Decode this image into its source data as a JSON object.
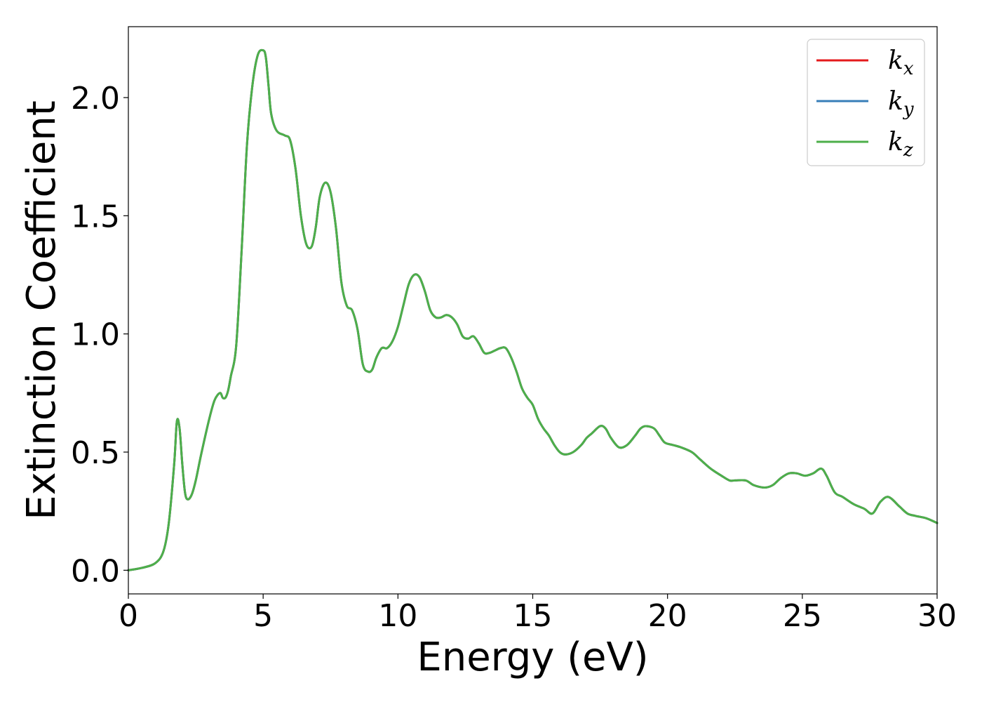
{
  "chart_data": {
    "type": "line",
    "title": "",
    "xlabel": "Energy (eV)",
    "ylabel": "Extinction Coefficient",
    "xlim": [
      0,
      30
    ],
    "ylim": [
      -0.1,
      2.3
    ],
    "x_ticks": [
      0,
      5,
      10,
      15,
      20,
      25,
      30
    ],
    "x_tick_labels": [
      "0",
      "5",
      "10",
      "15",
      "20",
      "25",
      "30"
    ],
    "y_ticks": [
      0.0,
      0.5,
      1.0,
      1.5,
      2.0
    ],
    "y_tick_labels": [
      "0.0",
      "0.5",
      "1.0",
      "1.5",
      "2.0"
    ],
    "grid": false,
    "legend_position": "top-right",
    "x": [
      0,
      0.5,
      1.0,
      1.3,
      1.5,
      1.7,
      1.8,
      1.9,
      2.0,
      2.1,
      2.2,
      2.35,
      2.5,
      2.7,
      3.0,
      3.2,
      3.4,
      3.5,
      3.6,
      3.7,
      3.8,
      4.0,
      4.2,
      4.4,
      4.6,
      4.8,
      5.0,
      5.1,
      5.2,
      5.3,
      5.5,
      5.8,
      6.0,
      6.2,
      6.4,
      6.6,
      6.8,
      6.95,
      7.1,
      7.3,
      7.5,
      7.7,
      7.9,
      8.1,
      8.3,
      8.5,
      8.7,
      8.9,
      9.05,
      9.2,
      9.4,
      9.6,
      9.8,
      10.0,
      10.2,
      10.4,
      10.6,
      10.8,
      11.0,
      11.2,
      11.4,
      11.6,
      11.8,
      12.0,
      12.2,
      12.4,
      12.6,
      12.8,
      13.0,
      13.2,
      13.4,
      13.6,
      13.8,
      14.0,
      14.2,
      14.4,
      14.6,
      14.8,
      15.0,
      15.2,
      15.4,
      15.6,
      15.8,
      16.0,
      16.2,
      16.5,
      16.8,
      17.0,
      17.2,
      17.5,
      17.7,
      17.9,
      18.2,
      18.5,
      18.8,
      19.0,
      19.2,
      19.5,
      19.7,
      19.9,
      20.2,
      20.5,
      20.9,
      21.2,
      21.6,
      22.0,
      22.3,
      22.5,
      22.9,
      23.2,
      23.6,
      23.9,
      24.2,
      24.5,
      24.8,
      25.1,
      25.4,
      25.7,
      25.9,
      26.2,
      26.5,
      26.9,
      27.3,
      27.6,
      27.9,
      28.2,
      28.6,
      28.9,
      29.2,
      29.6,
      30.0
    ],
    "series": [
      {
        "name": "k_x",
        "color": "#e41a1c",
        "values": [
          0.0,
          0.01,
          0.03,
          0.08,
          0.2,
          0.45,
          0.63,
          0.6,
          0.45,
          0.33,
          0.3,
          0.32,
          0.38,
          0.49,
          0.64,
          0.72,
          0.75,
          0.73,
          0.73,
          0.76,
          0.82,
          0.95,
          1.35,
          1.8,
          2.05,
          2.18,
          2.2,
          2.17,
          2.05,
          1.93,
          1.86,
          1.84,
          1.82,
          1.7,
          1.5,
          1.38,
          1.37,
          1.45,
          1.58,
          1.64,
          1.6,
          1.45,
          1.22,
          1.12,
          1.1,
          1.02,
          0.87,
          0.84,
          0.85,
          0.9,
          0.94,
          0.94,
          0.97,
          1.03,
          1.12,
          1.21,
          1.25,
          1.24,
          1.18,
          1.1,
          1.07,
          1.07,
          1.08,
          1.07,
          1.04,
          0.99,
          0.98,
          0.99,
          0.96,
          0.92,
          0.92,
          0.93,
          0.94,
          0.94,
          0.9,
          0.84,
          0.77,
          0.73,
          0.7,
          0.64,
          0.6,
          0.57,
          0.53,
          0.5,
          0.49,
          0.5,
          0.53,
          0.56,
          0.58,
          0.61,
          0.6,
          0.56,
          0.52,
          0.53,
          0.57,
          0.6,
          0.61,
          0.6,
          0.57,
          0.54,
          0.53,
          0.52,
          0.5,
          0.47,
          0.43,
          0.4,
          0.38,
          0.38,
          0.38,
          0.36,
          0.35,
          0.36,
          0.39,
          0.41,
          0.41,
          0.4,
          0.41,
          0.43,
          0.4,
          0.33,
          0.31,
          0.28,
          0.26,
          0.24,
          0.29,
          0.31,
          0.27,
          0.24,
          0.23,
          0.22,
          0.2
        ]
      },
      {
        "name": "k_y",
        "color": "#377eb8",
        "values": [
          0.0,
          0.01,
          0.03,
          0.08,
          0.2,
          0.45,
          0.63,
          0.6,
          0.45,
          0.33,
          0.3,
          0.32,
          0.38,
          0.49,
          0.64,
          0.72,
          0.75,
          0.73,
          0.73,
          0.76,
          0.82,
          0.95,
          1.35,
          1.8,
          2.05,
          2.18,
          2.2,
          2.17,
          2.05,
          1.93,
          1.86,
          1.84,
          1.82,
          1.7,
          1.5,
          1.38,
          1.37,
          1.45,
          1.58,
          1.64,
          1.6,
          1.45,
          1.22,
          1.12,
          1.1,
          1.02,
          0.87,
          0.84,
          0.85,
          0.9,
          0.94,
          0.94,
          0.97,
          1.03,
          1.12,
          1.21,
          1.25,
          1.24,
          1.18,
          1.1,
          1.07,
          1.07,
          1.08,
          1.07,
          1.04,
          0.99,
          0.98,
          0.99,
          0.96,
          0.92,
          0.92,
          0.93,
          0.94,
          0.94,
          0.9,
          0.84,
          0.77,
          0.73,
          0.7,
          0.64,
          0.6,
          0.57,
          0.53,
          0.5,
          0.49,
          0.5,
          0.53,
          0.56,
          0.58,
          0.61,
          0.6,
          0.56,
          0.52,
          0.53,
          0.57,
          0.6,
          0.61,
          0.6,
          0.57,
          0.54,
          0.53,
          0.52,
          0.5,
          0.47,
          0.43,
          0.4,
          0.38,
          0.38,
          0.38,
          0.36,
          0.35,
          0.36,
          0.39,
          0.41,
          0.41,
          0.4,
          0.41,
          0.43,
          0.4,
          0.33,
          0.31,
          0.28,
          0.26,
          0.24,
          0.29,
          0.31,
          0.27,
          0.24,
          0.23,
          0.22,
          0.2
        ]
      },
      {
        "name": "k_z",
        "color": "#4daf4a",
        "values": [
          0.0,
          0.01,
          0.03,
          0.08,
          0.2,
          0.45,
          0.63,
          0.6,
          0.45,
          0.33,
          0.3,
          0.32,
          0.38,
          0.49,
          0.64,
          0.72,
          0.75,
          0.73,
          0.73,
          0.76,
          0.82,
          0.95,
          1.35,
          1.8,
          2.05,
          2.18,
          2.2,
          2.17,
          2.05,
          1.93,
          1.86,
          1.84,
          1.82,
          1.7,
          1.5,
          1.38,
          1.37,
          1.45,
          1.58,
          1.64,
          1.6,
          1.45,
          1.22,
          1.12,
          1.1,
          1.02,
          0.87,
          0.84,
          0.85,
          0.9,
          0.94,
          0.94,
          0.97,
          1.03,
          1.12,
          1.21,
          1.25,
          1.24,
          1.18,
          1.1,
          1.07,
          1.07,
          1.08,
          1.07,
          1.04,
          0.99,
          0.98,
          0.99,
          0.96,
          0.92,
          0.92,
          0.93,
          0.94,
          0.94,
          0.9,
          0.84,
          0.77,
          0.73,
          0.7,
          0.64,
          0.6,
          0.57,
          0.53,
          0.5,
          0.49,
          0.5,
          0.53,
          0.56,
          0.58,
          0.61,
          0.6,
          0.56,
          0.52,
          0.53,
          0.57,
          0.6,
          0.61,
          0.6,
          0.57,
          0.54,
          0.53,
          0.52,
          0.5,
          0.47,
          0.43,
          0.4,
          0.38,
          0.38,
          0.38,
          0.36,
          0.35,
          0.36,
          0.39,
          0.41,
          0.41,
          0.4,
          0.41,
          0.43,
          0.4,
          0.33,
          0.31,
          0.28,
          0.26,
          0.24,
          0.29,
          0.31,
          0.27,
          0.24,
          0.23,
          0.22,
          0.2
        ]
      }
    ],
    "legend": [
      {
        "base": "k",
        "sub": "x",
        "color": "#e41a1c"
      },
      {
        "base": "k",
        "sub": "y",
        "color": "#377eb8"
      },
      {
        "base": "k",
        "sub": "z",
        "color": "#4daf4a"
      }
    ]
  }
}
